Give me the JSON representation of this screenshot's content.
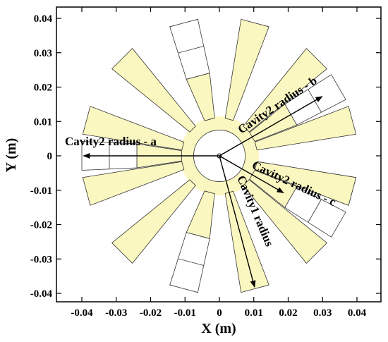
{
  "chart_data": {
    "type": "diagram",
    "xlabel": "X (m)",
    "ylabel": "Y (m)",
    "xlim": [
      -0.045,
      0.045
    ],
    "ylim": [
      -0.042,
      0.042
    ],
    "x_ticks": [
      "-0.04",
      "-0.03",
      "-0.02",
      "-0.01",
      "0",
      "0.01",
      "0.02",
      "0.03",
      "0.04"
    ],
    "y_ticks": [
      "0.04",
      "0.03",
      "0.02",
      "0.01",
      "0",
      "-0.01",
      "-0.02",
      "-0.03",
      "-0.04"
    ],
    "colors": {
      "cavity1_fill": "#fbf7c0",
      "cavity2_fill": "#ffffff",
      "outline": "#333333",
      "arrow": "#000000"
    },
    "hub": {
      "inner_radius": 0.0075,
      "outer_radius": 0.0115
    },
    "cavity1_vanes": [
      {
        "angle_deg": -15,
        "r_outer": 0.04
      },
      {
        "angle_deg": 15,
        "r_outer": 0.04
      },
      {
        "angle_deg": 45,
        "r_outer": 0.04
      },
      {
        "angle_deg": 75,
        "r_outer": 0.04
      },
      {
        "angle_deg": 105,
        "r_outer": 0.04
      },
      {
        "angle_deg": 135,
        "r_outer": 0.04
      },
      {
        "angle_deg": 165,
        "r_outer": 0.04
      },
      {
        "angle_deg": 195,
        "r_outer": 0.04
      },
      {
        "angle_deg": 225,
        "r_outer": 0.04
      },
      {
        "angle_deg": 255,
        "r_outer": 0.04
      },
      {
        "angle_deg": 285,
        "r_outer": 0.04
      },
      {
        "angle_deg": 315,
        "r_outer": 0.04
      },
      {
        "angle_deg": 345,
        "r_outer": 0.04
      }
    ],
    "cavity2_vanes": [
      {
        "angle_deg": 30,
        "r_outer": 0.04
      },
      {
        "angle_deg": 105,
        "r_outer": 0.04
      },
      {
        "angle_deg": 180,
        "r_outer": 0.04
      },
      {
        "angle_deg": 255,
        "r_outer": 0.04
      },
      {
        "angle_deg": 330,
        "r_outer": 0.04
      }
    ],
    "annotations": [
      {
        "text": "Cavity2 radius - a"
      },
      {
        "text": "Cavity2 radius - b"
      },
      {
        "text": "Cavity2 radius - c"
      },
      {
        "text": "Cavity1 radius"
      }
    ]
  }
}
